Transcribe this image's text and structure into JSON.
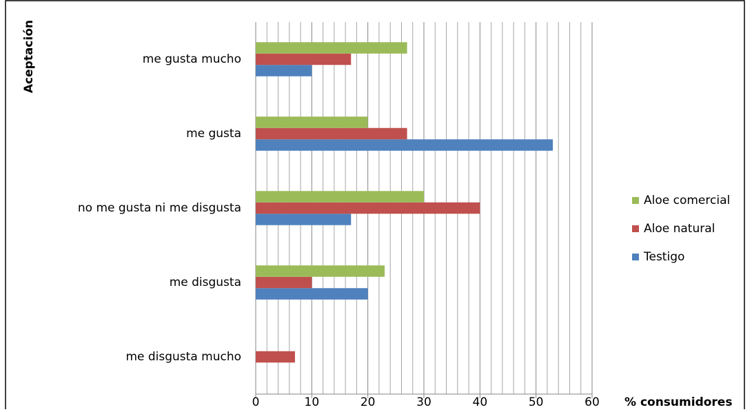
{
  "chart_data": {
    "type": "hbar",
    "y_axis_label": "Aceptación",
    "x_axis_label": "% consumidores",
    "categories": [
      "me gusta mucho",
      "me gusta",
      "no me gusta ni me disgusta",
      "me disgusta",
      "me disgusta mucho"
    ],
    "series": [
      {
        "name": "Testigo",
        "color": "#4f81bd",
        "values": [
          10,
          53,
          17,
          20,
          0
        ]
      },
      {
        "name": "Aloe natural",
        "color": "#c0504d",
        "values": [
          17,
          27,
          40,
          10,
          7
        ]
      },
      {
        "name": "Aloe comercial",
        "color": "#9bbb59",
        "values": [
          27,
          20,
          30,
          23,
          0
        ]
      }
    ],
    "xlim": [
      0,
      60
    ],
    "xticks": [
      0,
      10,
      20,
      30,
      40,
      50,
      60
    ],
    "x_minor_grid": [
      2,
      4,
      6,
      8,
      12,
      14,
      16,
      18,
      22,
      24,
      26,
      28,
      32,
      34,
      36,
      38,
      42,
      44,
      46,
      48,
      52,
      54,
      56,
      58
    ],
    "grid": true,
    "legend": "right"
  }
}
